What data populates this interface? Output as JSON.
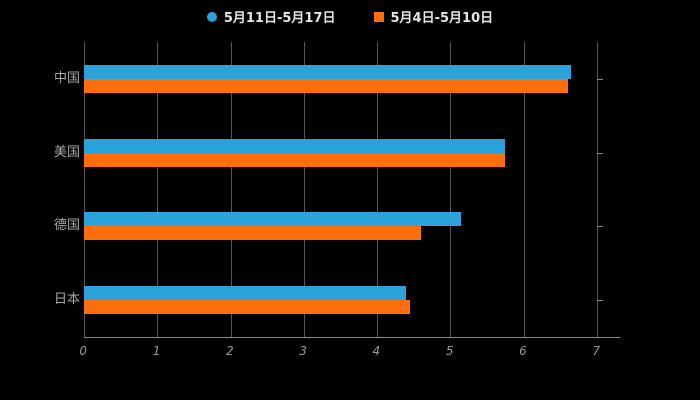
{
  "chart_data": {
    "type": "bar",
    "orientation": "horizontal",
    "title": "",
    "xlabel": "",
    "ylabel": "",
    "categories": [
      "中国",
      "美国",
      "德国",
      "日本"
    ],
    "series": [
      {
        "name": "5月11日-5月17日",
        "color": "#2CA2DB",
        "values": [
          6.65,
          5.75,
          5.15,
          4.4
        ]
      },
      {
        "name": "5月4日-5月10日",
        "color": "#FF6E0D",
        "values": [
          6.6,
          5.75,
          4.6,
          4.45
        ]
      }
    ],
    "xlim": [
      0,
      7
    ],
    "x_ticks": [
      0,
      1,
      2,
      3,
      4,
      5,
      6,
      7
    ],
    "grid": true,
    "legend_position": "top",
    "background_color": "#000000",
    "gridline_color": "#565656",
    "axis_color": "#8a8a8a",
    "text_color": "#a8a8a8"
  }
}
